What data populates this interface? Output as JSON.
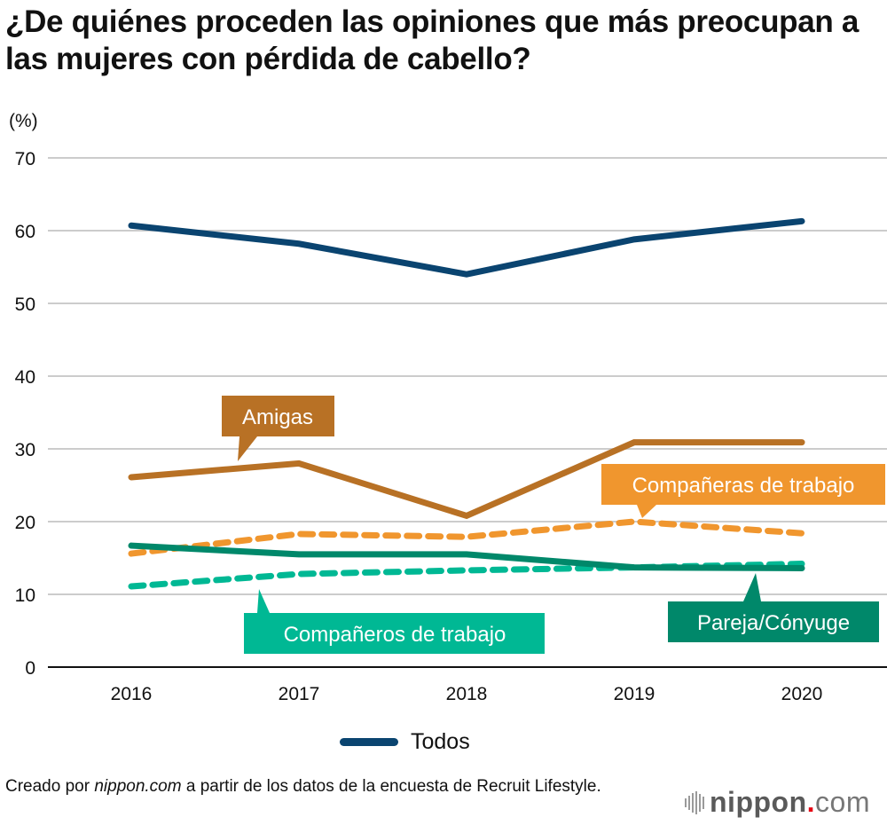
{
  "chart_data": {
    "type": "line",
    "title": "¿De quiénes proceden las opiniones que más preocupan a las mujeres con pérdida de cabello?",
    "ylabel": "(%)",
    "xlabel": "",
    "x": [
      "2016",
      "2017",
      "2018",
      "2019",
      "2020"
    ],
    "ylim": [
      0,
      70
    ],
    "yticks": [
      0,
      10,
      20,
      30,
      40,
      50,
      60,
      70
    ],
    "grid": true,
    "legend_position": "bottom-center",
    "series": [
      {
        "name": "Todos",
        "color": "#0a4470",
        "dashed": false,
        "values": [
          60.7,
          58.2,
          54.0,
          58.8,
          61.3
        ],
        "in_legend": true
      },
      {
        "name": "Amigas",
        "color": "#b87125",
        "dashed": false,
        "values": [
          26.1,
          28.0,
          20.8,
          30.9,
          30.9
        ],
        "callout": true
      },
      {
        "name": "Compañeras de trabajo",
        "color": "#f0962e",
        "dashed": true,
        "values": [
          15.6,
          18.3,
          17.9,
          20.0,
          18.4
        ],
        "callout": true
      },
      {
        "name": "Pareja/Cónyuge",
        "color": "#00886a",
        "dashed": false,
        "values": [
          16.7,
          15.5,
          15.5,
          13.7,
          13.6
        ],
        "callout": true
      },
      {
        "name": "Compañeros de trabajo",
        "color": "#00b894",
        "dashed": true,
        "values": [
          11.1,
          12.8,
          13.3,
          13.7,
          14.2
        ],
        "callout": true
      }
    ]
  },
  "legend": {
    "label": "Todos",
    "color": "#0a4470"
  },
  "source": {
    "prefix": "Creado por ",
    "site": "nippon.com",
    "suffix": " a partir de los datos de la encuesta de Recruit Lifestyle."
  },
  "logo": {
    "main": "nippon",
    "dot": ".",
    "tld": "com"
  }
}
